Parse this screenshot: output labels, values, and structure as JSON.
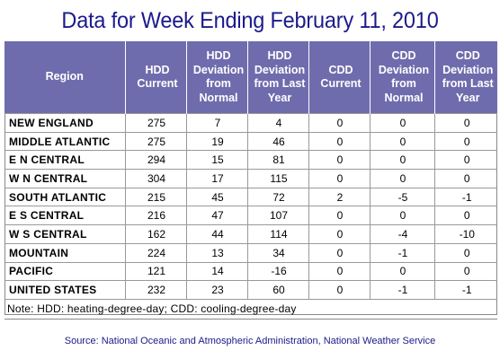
{
  "title": "Data for Week Ending February 11, 2010",
  "table": {
    "headers": [
      "Region",
      "HDD Current",
      "HDD Deviation from Normal",
      "HDD Deviation from Last Year",
      "CDD Current",
      "CDD Deviation from Normal",
      "CDD Deviation from Last Year"
    ],
    "rows": [
      {
        "region": "NEW ENGLAND",
        "values": [
          "275",
          "7",
          "4",
          "0",
          "0",
          "0"
        ]
      },
      {
        "region": "MIDDLE ATLANTIC",
        "values": [
          "275",
          "19",
          "46",
          "0",
          "0",
          "0"
        ]
      },
      {
        "region": "E N CENTRAL",
        "values": [
          "294",
          "15",
          "81",
          "0",
          "0",
          "0"
        ]
      },
      {
        "region": "W N CENTRAL",
        "values": [
          "304",
          "17",
          "115",
          "0",
          "0",
          "0"
        ]
      },
      {
        "region": "SOUTH ATLANTIC",
        "values": [
          "215",
          "45",
          "72",
          "2",
          "-5",
          "-1"
        ]
      },
      {
        "region": "E S CENTRAL",
        "values": [
          "216",
          "47",
          "107",
          "0",
          "0",
          "0"
        ]
      },
      {
        "region": "W S CENTRAL",
        "values": [
          "162",
          "44",
          "114",
          "0",
          "-4",
          "-10"
        ]
      },
      {
        "region": "MOUNTAIN",
        "values": [
          "224",
          "13",
          "34",
          "0",
          "-1",
          "0"
        ]
      },
      {
        "region": "PACIFIC",
        "values": [
          "121",
          "14",
          "-16",
          "0",
          "0",
          "0"
        ]
      },
      {
        "region": "UNITED STATES",
        "values": [
          "232",
          "23",
          "60",
          "0",
          "-1",
          "-1"
        ]
      }
    ],
    "note": "Note: HDD: heating-degree-day; CDD: cooling-degree-day"
  },
  "source": "Source:  National Oceanic and Atmospheric Administration, National Weather Service",
  "colors": {
    "title": "#1a1a8c",
    "header_bg": "#6f6cad",
    "header_text": "#ffffff"
  }
}
